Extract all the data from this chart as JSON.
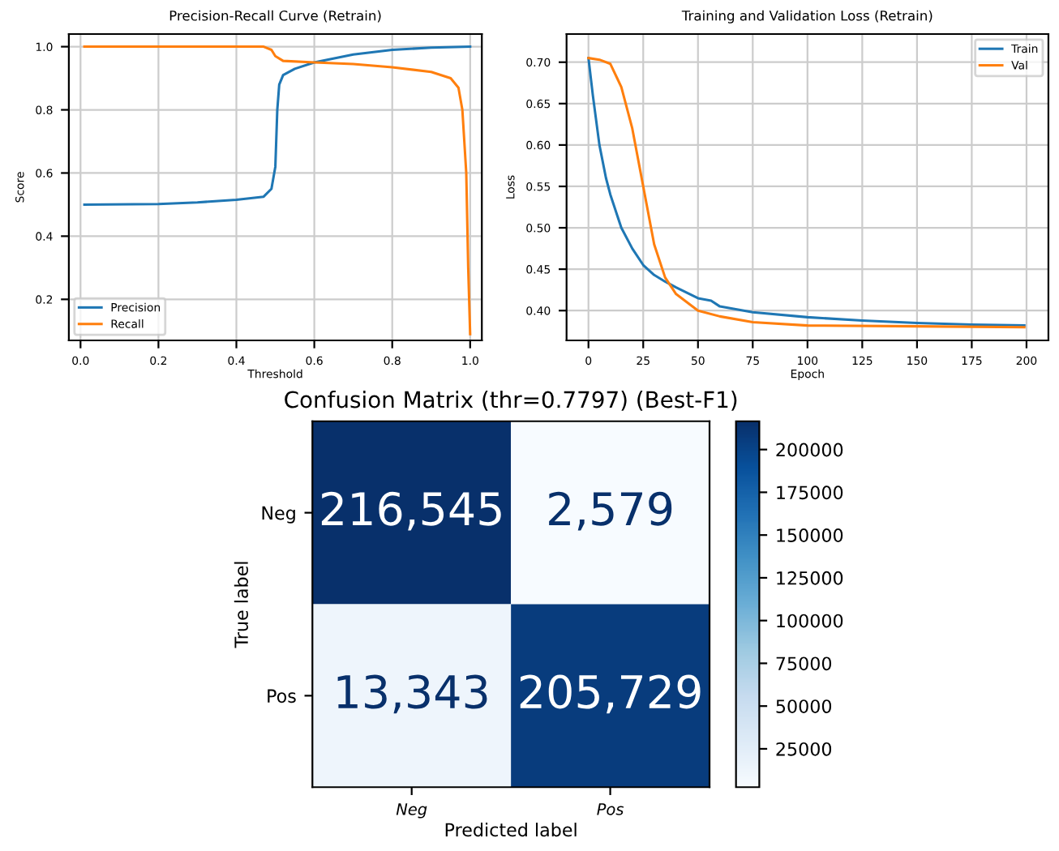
{
  "chart_data": [
    {
      "type": "line",
      "title": "Precision-Recall Curve (Retrain)",
      "xlabel": "Threshold",
      "ylabel": "Score",
      "xlim": [
        -0.03,
        1.03
      ],
      "ylim": [
        0.07,
        1.04
      ],
      "xticks": [
        {
          "value": 0,
          "label": "0.0"
        },
        0.2,
        0.4,
        0.6,
        0.8,
        {
          "value": 1,
          "label": "1.0"
        }
      ],
      "yticks": [
        0.2,
        0.4,
        0.6,
        0.8,
        {
          "value": 1,
          "label": "1.0"
        }
      ],
      "grid": true,
      "legend": "bottom left",
      "series": [
        {
          "name": "Precision",
          "color": "#1f77b4",
          "x": [
            0.01,
            0.2,
            0.3,
            0.4,
            0.47,
            0.49,
            0.5,
            0.505,
            0.51,
            0.52,
            0.55,
            0.6,
            0.7,
            0.8,
            0.9,
            1.0
          ],
          "values": [
            0.5,
            0.502,
            0.507,
            0.515,
            0.525,
            0.55,
            0.62,
            0.8,
            0.88,
            0.91,
            0.93,
            0.95,
            0.975,
            0.99,
            0.997,
            1.0
          ]
        },
        {
          "name": "Recall",
          "color": "#ff7f0e",
          "x": [
            0.01,
            0.47,
            0.49,
            0.5,
            0.52,
            0.6,
            0.7,
            0.8,
            0.9,
            0.95,
            0.97,
            0.98,
            0.99,
            0.995,
            1.0
          ],
          "values": [
            1.0,
            1.0,
            0.99,
            0.97,
            0.955,
            0.95,
            0.945,
            0.935,
            0.92,
            0.9,
            0.87,
            0.8,
            0.6,
            0.3,
            0.09
          ]
        }
      ]
    },
    {
      "type": "line",
      "title": "Training and Validation Loss (Retrain)",
      "xlabel": "Epoch",
      "ylabel": "Loss",
      "xlim": [
        -10,
        210
      ],
      "ylim": [
        0.364,
        0.734
      ],
      "xticks": [
        0,
        25,
        50,
        75,
        100,
        125,
        150,
        175,
        200
      ],
      "yticks": [
        {
          "value": 0.4,
          "label": "0.40"
        },
        0.45,
        {
          "value": 0.5,
          "label": "0.50"
        },
        0.55,
        {
          "value": 0.6,
          "label": "0.60"
        },
        0.65,
        {
          "value": 0.7,
          "label": "0.70"
        }
      ],
      "grid": true,
      "legend": "top right",
      "series": [
        {
          "name": "Train",
          "color": "#1f77b4",
          "x": [
            0,
            2,
            5,
            8,
            10,
            15,
            20,
            25,
            30,
            35,
            40,
            50,
            56,
            60,
            75,
            100,
            125,
            150,
            175,
            199
          ],
          "values": [
            0.705,
            0.66,
            0.6,
            0.56,
            0.54,
            0.5,
            0.475,
            0.455,
            0.443,
            0.435,
            0.428,
            0.415,
            0.412,
            0.405,
            0.398,
            0.392,
            0.388,
            0.385,
            0.383,
            0.382
          ]
        },
        {
          "name": "Val",
          "color": "#ff7f0e",
          "x": [
            0,
            5,
            10,
            15,
            20,
            25,
            30,
            35,
            40,
            50,
            60,
            75,
            100,
            150,
            199
          ],
          "values": [
            0.705,
            0.703,
            0.698,
            0.67,
            0.62,
            0.55,
            0.48,
            0.44,
            0.42,
            0.4,
            0.393,
            0.386,
            0.382,
            0.381,
            0.38
          ]
        }
      ]
    },
    {
      "type": "heatmap",
      "title": "Confusion Matrix (thr=0.7797) (Best-F1)",
      "xlabel": "Predicted label",
      "ylabel": "True label",
      "categories": [
        "Neg",
        "Pos"
      ],
      "y_categories": [
        "Neg",
        "Pos"
      ],
      "cells": [
        [
          216545,
          2579
        ],
        [
          13343,
          205729
        ]
      ],
      "cell_labels": [
        [
          "216,545",
          "2,579"
        ],
        [
          "13,343",
          "205,729"
        ]
      ],
      "clim": [
        2579,
        216545
      ],
      "cticks": [
        25000,
        50000,
        75000,
        100000,
        125000,
        150000,
        175000,
        200000
      ]
    }
  ]
}
